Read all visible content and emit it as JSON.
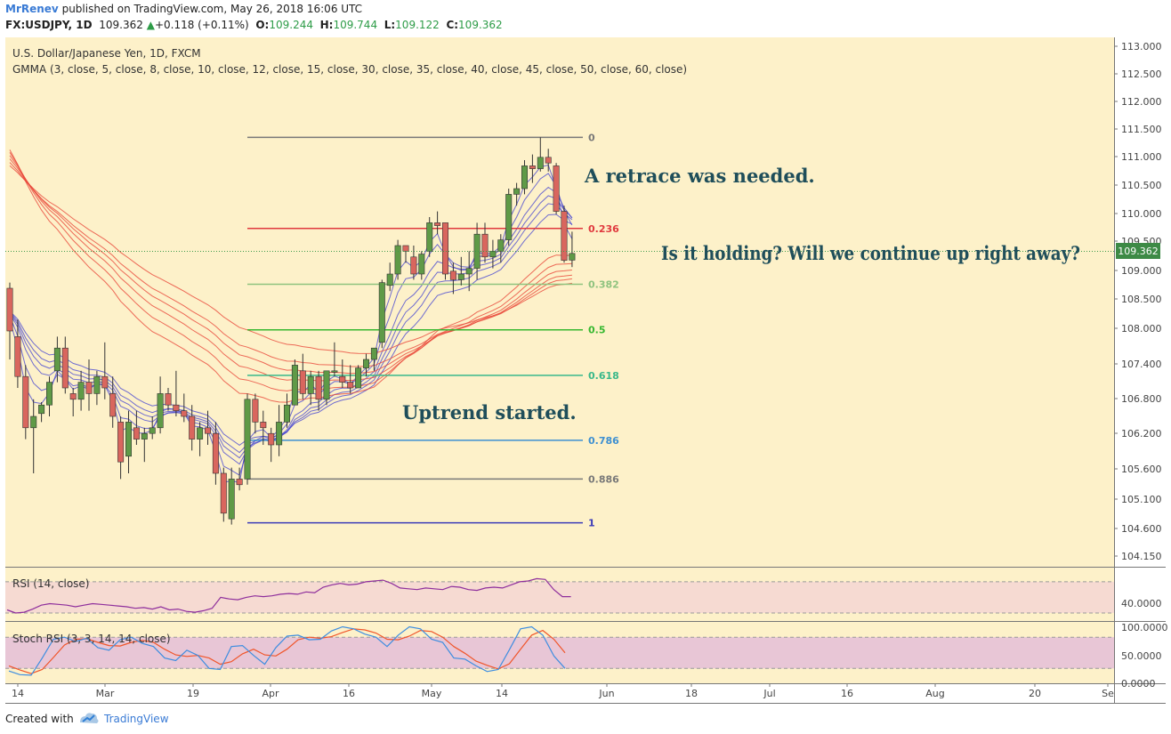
{
  "header": {
    "author": "MrRenev",
    "published": "published on TradingView.com, May 26, 2018 16:06 UTC",
    "symbol": "FX:USDJPY, 1D",
    "last": "109.362",
    "change": "+0.118 (+0.11%)",
    "o_label": "O:",
    "o": "109.244",
    "h_label": "H:",
    "h": "109.744",
    "l_label": "L:",
    "l": "109.122",
    "c_label": "C:",
    "c": "109.362"
  },
  "pane_labels": {
    "main": "U.S. Dollar/Japanese Yen, 1D, FXCM",
    "gmma": "GMMA (3, close, 5, close, 8, close, 10, close, 12, close, 15, close, 30, close, 35, close, 40, close, 45, close, 50, close, 60, close)",
    "rsi": "RSI (14, close)",
    "stoch": "Stoch RSI (3, 3, 14, 14, close)"
  },
  "annotations": {
    "a1": "A retrace was needed.",
    "a2": "Is it holding? Will we continue up right away?",
    "a3": "Uptrend started."
  },
  "price_badge": "109.362",
  "colors": {
    "background": "#fdf1c9",
    "candle_up": "#5f9a47",
    "candle_down": "#d9665e",
    "gmma_short": "#3f3fd1",
    "gmma_long": "#e8473a"
  },
  "footer": {
    "created": "Created with",
    "brand": "TradingView"
  },
  "chart_data": {
    "type": "candlestick",
    "symbol": "FX:USDJPY",
    "interval": "1D",
    "y_axis_ticks": [
      "113.000",
      "112.500",
      "112.000",
      "111.500",
      "111.000",
      "110.500",
      "110.000",
      "109.500",
      "109.000",
      "108.500",
      "108.000",
      "107.400",
      "106.800",
      "106.200",
      "105.600",
      "105.100",
      "104.600",
      "104.150"
    ],
    "x_axis_ticks": [
      "14",
      "Mar",
      "19",
      "Apr",
      "16",
      "May",
      "14",
      "Jun",
      "18",
      "Jul",
      "16",
      "Aug",
      "20",
      "Se"
    ],
    "candles": [
      {
        "o": 108.75,
        "h": 108.85,
        "l": 107.5,
        "c": 108.0
      },
      {
        "o": 107.9,
        "h": 108.2,
        "l": 107.0,
        "c": 107.2
      },
      {
        "o": 107.2,
        "h": 107.4,
        "l": 106.1,
        "c": 106.3
      },
      {
        "o": 106.3,
        "h": 106.8,
        "l": 105.5,
        "c": 106.5
      },
      {
        "o": 106.55,
        "h": 106.75,
        "l": 106.4,
        "c": 106.7
      },
      {
        "o": 106.7,
        "h": 107.2,
        "l": 106.5,
        "c": 107.1
      },
      {
        "o": 107.3,
        "h": 107.9,
        "l": 107.1,
        "c": 107.7
      },
      {
        "o": 107.7,
        "h": 107.9,
        "l": 106.9,
        "c": 107.0
      },
      {
        "o": 106.9,
        "h": 107.0,
        "l": 106.5,
        "c": 106.8
      },
      {
        "o": 106.8,
        "h": 107.3,
        "l": 106.6,
        "c": 107.1
      },
      {
        "o": 107.1,
        "h": 107.5,
        "l": 106.6,
        "c": 106.9
      },
      {
        "o": 106.9,
        "h": 107.3,
        "l": 106.7,
        "c": 107.2
      },
      {
        "o": 107.2,
        "h": 107.8,
        "l": 106.8,
        "c": 107.0
      },
      {
        "o": 106.9,
        "h": 107.2,
        "l": 106.3,
        "c": 106.5
      },
      {
        "o": 106.4,
        "h": 106.5,
        "l": 105.4,
        "c": 105.7
      },
      {
        "o": 105.8,
        "h": 106.6,
        "l": 105.5,
        "c": 106.4
      },
      {
        "o": 106.3,
        "h": 106.6,
        "l": 106.0,
        "c": 106.1
      },
      {
        "o": 106.1,
        "h": 106.3,
        "l": 105.7,
        "c": 106.2
      },
      {
        "o": 106.2,
        "h": 106.5,
        "l": 106.1,
        "c": 106.3
      },
      {
        "o": 106.3,
        "h": 107.2,
        "l": 106.2,
        "c": 106.9
      },
      {
        "o": 106.9,
        "h": 107.0,
        "l": 106.6,
        "c": 106.7
      },
      {
        "o": 106.7,
        "h": 107.3,
        "l": 106.5,
        "c": 106.6
      },
      {
        "o": 106.6,
        "h": 106.9,
        "l": 106.4,
        "c": 106.5
      },
      {
        "o": 106.5,
        "h": 106.7,
        "l": 105.9,
        "c": 106.1
      },
      {
        "o": 106.1,
        "h": 106.4,
        "l": 105.8,
        "c": 106.3
      },
      {
        "o": 106.3,
        "h": 106.6,
        "l": 106.0,
        "c": 106.2
      },
      {
        "o": 106.2,
        "h": 106.4,
        "l": 105.3,
        "c": 105.5
      },
      {
        "o": 105.5,
        "h": 105.6,
        "l": 104.65,
        "c": 104.8
      },
      {
        "o": 104.7,
        "h": 105.6,
        "l": 104.6,
        "c": 105.4
      },
      {
        "o": 105.4,
        "h": 105.6,
        "l": 105.2,
        "c": 105.3
      },
      {
        "o": 105.4,
        "h": 106.9,
        "l": 105.3,
        "c": 106.8
      },
      {
        "o": 106.8,
        "h": 106.9,
        "l": 106.2,
        "c": 106.4
      },
      {
        "o": 106.4,
        "h": 106.6,
        "l": 106.0,
        "c": 106.3
      },
      {
        "o": 106.2,
        "h": 106.3,
        "l": 105.7,
        "c": 106.0
      },
      {
        "o": 106.0,
        "h": 106.7,
        "l": 105.8,
        "c": 106.4
      },
      {
        "o": 106.4,
        "h": 106.9,
        "l": 106.3,
        "c": 106.7
      },
      {
        "o": 106.7,
        "h": 107.5,
        "l": 106.7,
        "c": 107.4
      },
      {
        "o": 107.3,
        "h": 107.6,
        "l": 106.8,
        "c": 106.9
      },
      {
        "o": 106.9,
        "h": 107.3,
        "l": 106.7,
        "c": 107.2
      },
      {
        "o": 107.2,
        "h": 107.3,
        "l": 106.6,
        "c": 106.8
      },
      {
        "o": 106.8,
        "h": 107.3,
        "l": 106.7,
        "c": 107.3
      },
      {
        "o": 107.3,
        "h": 107.8,
        "l": 107.2,
        "c": 107.3
      },
      {
        "o": 107.2,
        "h": 107.5,
        "l": 107.0,
        "c": 107.1
      },
      {
        "o": 107.1,
        "h": 107.4,
        "l": 106.9,
        "c": 107.0
      },
      {
        "o": 107.0,
        "h": 107.4,
        "l": 107.0,
        "c": 107.35
      },
      {
        "o": 107.35,
        "h": 107.6,
        "l": 107.2,
        "c": 107.5
      },
      {
        "o": 107.5,
        "h": 107.7,
        "l": 107.3,
        "c": 107.7
      },
      {
        "o": 107.8,
        "h": 108.9,
        "l": 107.7,
        "c": 108.85
      },
      {
        "o": 108.8,
        "h": 109.2,
        "l": 108.7,
        "c": 109.0
      },
      {
        "o": 109.0,
        "h": 109.6,
        "l": 108.9,
        "c": 109.5
      },
      {
        "o": 109.5,
        "h": 109.5,
        "l": 109.2,
        "c": 109.4
      },
      {
        "o": 109.3,
        "h": 109.5,
        "l": 108.9,
        "c": 109.0
      },
      {
        "o": 109.0,
        "h": 109.4,
        "l": 108.9,
        "c": 109.35
      },
      {
        "o": 109.4,
        "h": 110.0,
        "l": 109.3,
        "c": 109.9
      },
      {
        "o": 109.9,
        "h": 110.1,
        "l": 109.7,
        "c": 109.85
      },
      {
        "o": 109.9,
        "h": 109.9,
        "l": 108.9,
        "c": 109.0
      },
      {
        "o": 109.05,
        "h": 109.2,
        "l": 108.65,
        "c": 108.9
      },
      {
        "o": 108.9,
        "h": 109.3,
        "l": 108.8,
        "c": 109.0
      },
      {
        "o": 109.0,
        "h": 109.4,
        "l": 108.7,
        "c": 109.1
      },
      {
        "o": 109.1,
        "h": 109.9,
        "l": 108.9,
        "c": 109.7
      },
      {
        "o": 109.7,
        "h": 109.9,
        "l": 109.2,
        "c": 109.3
      },
      {
        "o": 109.3,
        "h": 109.6,
        "l": 109.1,
        "c": 109.4
      },
      {
        "o": 109.4,
        "h": 109.7,
        "l": 109.2,
        "c": 109.6
      },
      {
        "o": 109.6,
        "h": 110.5,
        "l": 109.5,
        "c": 110.4
      },
      {
        "o": 110.4,
        "h": 110.6,
        "l": 110.2,
        "c": 110.5
      },
      {
        "o": 110.5,
        "h": 111.0,
        "l": 110.4,
        "c": 110.9
      },
      {
        "o": 110.9,
        "h": 111.1,
        "l": 110.6,
        "c": 110.85
      },
      {
        "o": 110.85,
        "h": 111.4,
        "l": 110.8,
        "c": 111.05
      },
      {
        "o": 111.05,
        "h": 111.2,
        "l": 110.8,
        "c": 110.95
      },
      {
        "o": 110.9,
        "h": 110.95,
        "l": 110.05,
        "c": 110.1
      },
      {
        "o": 110.1,
        "h": 110.2,
        "l": 109.2,
        "c": 109.24
      },
      {
        "o": 109.244,
        "h": 109.744,
        "l": 109.122,
        "c": 109.362
      }
    ],
    "fibonacci": {
      "levels": [
        {
          "label": "0",
          "price": 111.4,
          "color": "#787878"
        },
        {
          "label": "0.236",
          "price": 109.8,
          "color": "#e0393e"
        },
        {
          "label": "0.382",
          "price": 108.82,
          "color": "#8fc37f"
        },
        {
          "label": "0.5",
          "price": 108.02,
          "color": "#36b830"
        },
        {
          "label": "0.618",
          "price": 107.22,
          "color": "#39b88a"
        },
        {
          "label": "0.786",
          "price": 106.08,
          "color": "#3d8fd1"
        },
        {
          "label": "0.886",
          "price": 105.4,
          "color": "#787878"
        },
        {
          "label": "1",
          "price": 104.63,
          "color": "#3b3bb8"
        }
      ]
    },
    "rsi": {
      "values": [
        34,
        30,
        31,
        35,
        40,
        42,
        41,
        40,
        38,
        40,
        42,
        41,
        40,
        39,
        38,
        36,
        37,
        35,
        38,
        34,
        35,
        32,
        31,
        33,
        36,
        50,
        48,
        47,
        50,
        52,
        51,
        52,
        54,
        55,
        54,
        57,
        56,
        63,
        66,
        68,
        66,
        67,
        70,
        71,
        72,
        68,
        62,
        61,
        60,
        62,
        61,
        60,
        64,
        63,
        60,
        59,
        62,
        63,
        62,
        66,
        70,
        71,
        74,
        73,
        60,
        51,
        51
      ],
      "upper": 70,
      "lower": 30,
      "axis_tick": "40.0000"
    },
    "stoch_rsi": {
      "k": [
        15,
        8,
        7,
        40,
        76,
        80,
        72,
        78,
        60,
        55,
        75,
        80,
        68,
        62,
        40,
        35,
        55,
        45,
        20,
        18,
        62,
        64,
        45,
        28,
        60,
        82,
        84,
        75,
        76,
        92,
        100,
        96,
        86,
        80,
        62,
        84,
        100,
        96,
        76,
        70,
        40,
        38,
        25,
        14,
        18,
        56,
        96,
        100,
        84,
        44,
        20
      ],
      "d": [
        25,
        17,
        10,
        18,
        41,
        65,
        76,
        77,
        70,
        64,
        63,
        70,
        74,
        70,
        57,
        46,
        43,
        45,
        40,
        28,
        33,
        48,
        57,
        46,
        44,
        57,
        75,
        80,
        78,
        81,
        89,
        96,
        94,
        88,
        76,
        75,
        82,
        93,
        91,
        80,
        62,
        49,
        34,
        26,
        19,
        29,
        57,
        84,
        93,
        76,
        50
      ],
      "axis_ticks": [
        "100.0000",
        "50.0000",
        "0.0000"
      ]
    }
  }
}
